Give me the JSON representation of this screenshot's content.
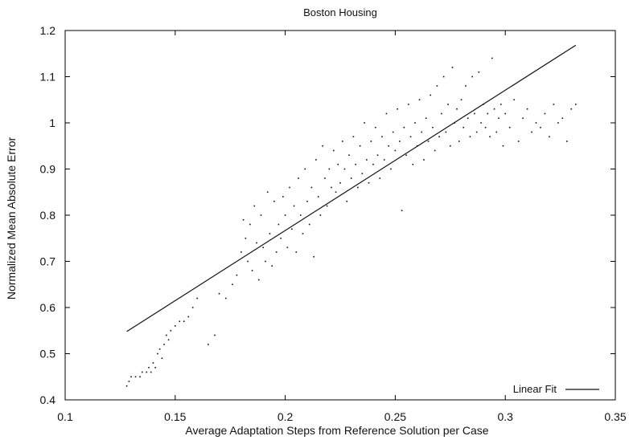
{
  "chart_data": {
    "type": "scatter",
    "title": "Boston Housing",
    "xlabel": "Average Adaptation Steps from Reference Solution per Case",
    "ylabel": "Normalized Mean Absolute Error",
    "xlim": [
      0.1,
      0.35
    ],
    "ylim": [
      0.4,
      1.2
    ],
    "xticks": [
      0.1,
      0.15,
      0.2,
      0.25,
      0.3,
      0.35
    ],
    "yticks": [
      0.4,
      0.5,
      0.6,
      0.7,
      0.8,
      0.9,
      1.0,
      1.1,
      1.2
    ],
    "xtick_labels": [
      "0.1",
      "0.15",
      "0.2",
      "0.25",
      "0.3",
      "0.35"
    ],
    "ytick_labels": [
      "0.4",
      "0.5",
      "0.6",
      "0.7",
      "0.8",
      "0.9",
      "1",
      "1.1",
      "1.2"
    ],
    "grid": false,
    "legend_position": "bottom-right",
    "legend_entries": [
      "Linear Fit"
    ],
    "series": [
      {
        "type": "scatter",
        "points": [
          [
            0.128,
            0.43
          ],
          [
            0.129,
            0.44
          ],
          [
            0.13,
            0.45
          ],
          [
            0.132,
            0.45
          ],
          [
            0.134,
            0.45
          ],
          [
            0.135,
            0.46
          ],
          [
            0.137,
            0.46
          ],
          [
            0.138,
            0.47
          ],
          [
            0.139,
            0.46
          ],
          [
            0.14,
            0.48
          ],
          [
            0.141,
            0.47
          ],
          [
            0.142,
            0.5
          ],
          [
            0.143,
            0.51
          ],
          [
            0.144,
            0.49
          ],
          [
            0.145,
            0.52
          ],
          [
            0.146,
            0.54
          ],
          [
            0.147,
            0.53
          ],
          [
            0.148,
            0.55
          ],
          [
            0.15,
            0.56
          ],
          [
            0.152,
            0.57
          ],
          [
            0.154,
            0.57
          ],
          [
            0.156,
            0.58
          ],
          [
            0.158,
            0.6
          ],
          [
            0.16,
            0.62
          ],
          [
            0.165,
            0.52
          ],
          [
            0.168,
            0.54
          ],
          [
            0.17,
            0.63
          ],
          [
            0.173,
            0.62
          ],
          [
            0.176,
            0.65
          ],
          [
            0.178,
            0.67
          ],
          [
            0.18,
            0.72
          ],
          [
            0.181,
            0.79
          ],
          [
            0.182,
            0.75
          ],
          [
            0.183,
            0.7
          ],
          [
            0.184,
            0.78
          ],
          [
            0.185,
            0.68
          ],
          [
            0.186,
            0.82
          ],
          [
            0.187,
            0.74
          ],
          [
            0.188,
            0.66
          ],
          [
            0.189,
            0.8
          ],
          [
            0.19,
            0.73
          ],
          [
            0.191,
            0.7
          ],
          [
            0.192,
            0.85
          ],
          [
            0.193,
            0.76
          ],
          [
            0.194,
            0.69
          ],
          [
            0.195,
            0.83
          ],
          [
            0.196,
            0.72
          ],
          [
            0.197,
            0.78
          ],
          [
            0.198,
            0.75
          ],
          [
            0.199,
            0.84
          ],
          [
            0.2,
            0.8
          ],
          [
            0.201,
            0.73
          ],
          [
            0.202,
            0.86
          ],
          [
            0.203,
            0.77
          ],
          [
            0.204,
            0.82
          ],
          [
            0.205,
            0.72
          ],
          [
            0.206,
            0.88
          ],
          [
            0.207,
            0.8
          ],
          [
            0.208,
            0.76
          ],
          [
            0.209,
            0.9
          ],
          [
            0.21,
            0.83
          ],
          [
            0.211,
            0.78
          ],
          [
            0.212,
            0.86
          ],
          [
            0.213,
            0.71
          ],
          [
            0.214,
            0.92
          ],
          [
            0.215,
            0.84
          ],
          [
            0.216,
            0.8
          ],
          [
            0.217,
            0.95
          ],
          [
            0.218,
            0.88
          ],
          [
            0.219,
            0.82
          ],
          [
            0.22,
            0.9
          ],
          [
            0.221,
            0.86
          ],
          [
            0.222,
            0.94
          ],
          [
            0.223,
            0.85
          ],
          [
            0.224,
            0.91
          ],
          [
            0.225,
            0.87
          ],
          [
            0.226,
            0.96
          ],
          [
            0.227,
            0.9
          ],
          [
            0.228,
            0.83
          ],
          [
            0.229,
            0.93
          ],
          [
            0.23,
            0.88
          ],
          [
            0.231,
            0.97
          ],
          [
            0.232,
            0.91
          ],
          [
            0.233,
            0.86
          ],
          [
            0.234,
            0.95
          ],
          [
            0.235,
            0.89
          ],
          [
            0.236,
            1.0
          ],
          [
            0.237,
            0.92
          ],
          [
            0.238,
            0.87
          ],
          [
            0.239,
            0.96
          ],
          [
            0.24,
            0.91
          ],
          [
            0.241,
            0.99
          ],
          [
            0.242,
            0.93
          ],
          [
            0.243,
            0.88
          ],
          [
            0.244,
            0.97
          ],
          [
            0.245,
            0.92
          ],
          [
            0.246,
            1.02
          ],
          [
            0.247,
            0.95
          ],
          [
            0.248,
            0.9
          ],
          [
            0.249,
            0.98
          ],
          [
            0.25,
            0.94
          ],
          [
            0.251,
            1.03
          ],
          [
            0.252,
            0.96
          ],
          [
            0.253,
            0.81
          ],
          [
            0.254,
            0.99
          ],
          [
            0.255,
            0.93
          ],
          [
            0.256,
            1.04
          ],
          [
            0.257,
            0.97
          ],
          [
            0.258,
            0.91
          ],
          [
            0.259,
            1.0
          ],
          [
            0.26,
            0.95
          ],
          [
            0.261,
            1.05
          ],
          [
            0.262,
            0.98
          ],
          [
            0.263,
            0.92
          ],
          [
            0.264,
            1.01
          ],
          [
            0.265,
            0.96
          ],
          [
            0.266,
            1.06
          ],
          [
            0.267,
            0.99
          ],
          [
            0.268,
            0.94
          ],
          [
            0.269,
            1.08
          ],
          [
            0.27,
            0.97
          ],
          [
            0.271,
            1.02
          ],
          [
            0.272,
            1.1
          ],
          [
            0.273,
            0.98
          ],
          [
            0.274,
            1.04
          ],
          [
            0.275,
            0.95
          ],
          [
            0.276,
            1.12
          ],
          [
            0.277,
            1.0
          ],
          [
            0.278,
            1.03
          ],
          [
            0.279,
            0.96
          ],
          [
            0.28,
            1.05
          ],
          [
            0.281,
            0.99
          ],
          [
            0.282,
            1.08
          ],
          [
            0.283,
            1.01
          ],
          [
            0.284,
            0.97
          ],
          [
            0.285,
            1.1
          ],
          [
            0.286,
            1.02
          ],
          [
            0.287,
            0.98
          ],
          [
            0.288,
            1.11
          ],
          [
            0.289,
            1.0
          ],
          [
            0.29,
            1.04
          ],
          [
            0.291,
            0.99
          ],
          [
            0.292,
            1.02
          ],
          [
            0.293,
            0.97
          ],
          [
            0.294,
            1.14
          ],
          [
            0.295,
            1.03
          ],
          [
            0.296,
            0.98
          ],
          [
            0.297,
            1.01
          ],
          [
            0.298,
            1.04
          ],
          [
            0.299,
            0.95
          ],
          [
            0.3,
            1.02
          ],
          [
            0.302,
            0.99
          ],
          [
            0.304,
            1.05
          ],
          [
            0.306,
            0.96
          ],
          [
            0.308,
            1.01
          ],
          [
            0.31,
            1.03
          ],
          [
            0.312,
            0.98
          ],
          [
            0.314,
            1.0
          ],
          [
            0.316,
            0.99
          ],
          [
            0.318,
            1.02
          ],
          [
            0.32,
            0.97
          ],
          [
            0.322,
            1.04
          ],
          [
            0.324,
            1.0
          ],
          [
            0.326,
            1.01
          ],
          [
            0.328,
            0.96
          ],
          [
            0.33,
            1.03
          ],
          [
            0.332,
            1.04
          ]
        ]
      },
      {
        "name": "Linear Fit",
        "type": "line",
        "x": [
          0.128,
          0.332
        ],
        "y": [
          0.548,
          1.168
        ]
      }
    ]
  }
}
